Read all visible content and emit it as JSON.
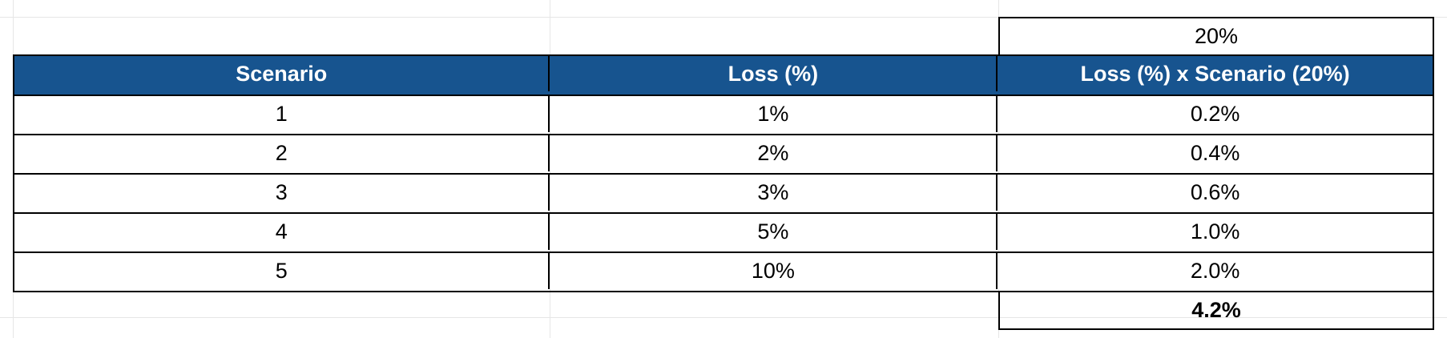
{
  "table": {
    "factor": "20%",
    "headers": [
      "Scenario",
      "Loss (%)",
      "Loss (%) x Scenario (20%)"
    ],
    "rows": [
      {
        "scenario": "1",
        "loss": "1%",
        "weighted": "0.2%"
      },
      {
        "scenario": "2",
        "loss": "2%",
        "weighted": "0.4%"
      },
      {
        "scenario": "3",
        "loss": "3%",
        "weighted": "0.6%"
      },
      {
        "scenario": "4",
        "loss": "5%",
        "weighted": "1.0%"
      },
      {
        "scenario": "5",
        "loss": "10%",
        "weighted": "2.0%"
      }
    ],
    "total": "4.2%"
  },
  "colors": {
    "header_background": "#17548f",
    "header_text": "#ffffff",
    "gridline": "#e6e6e6"
  }
}
